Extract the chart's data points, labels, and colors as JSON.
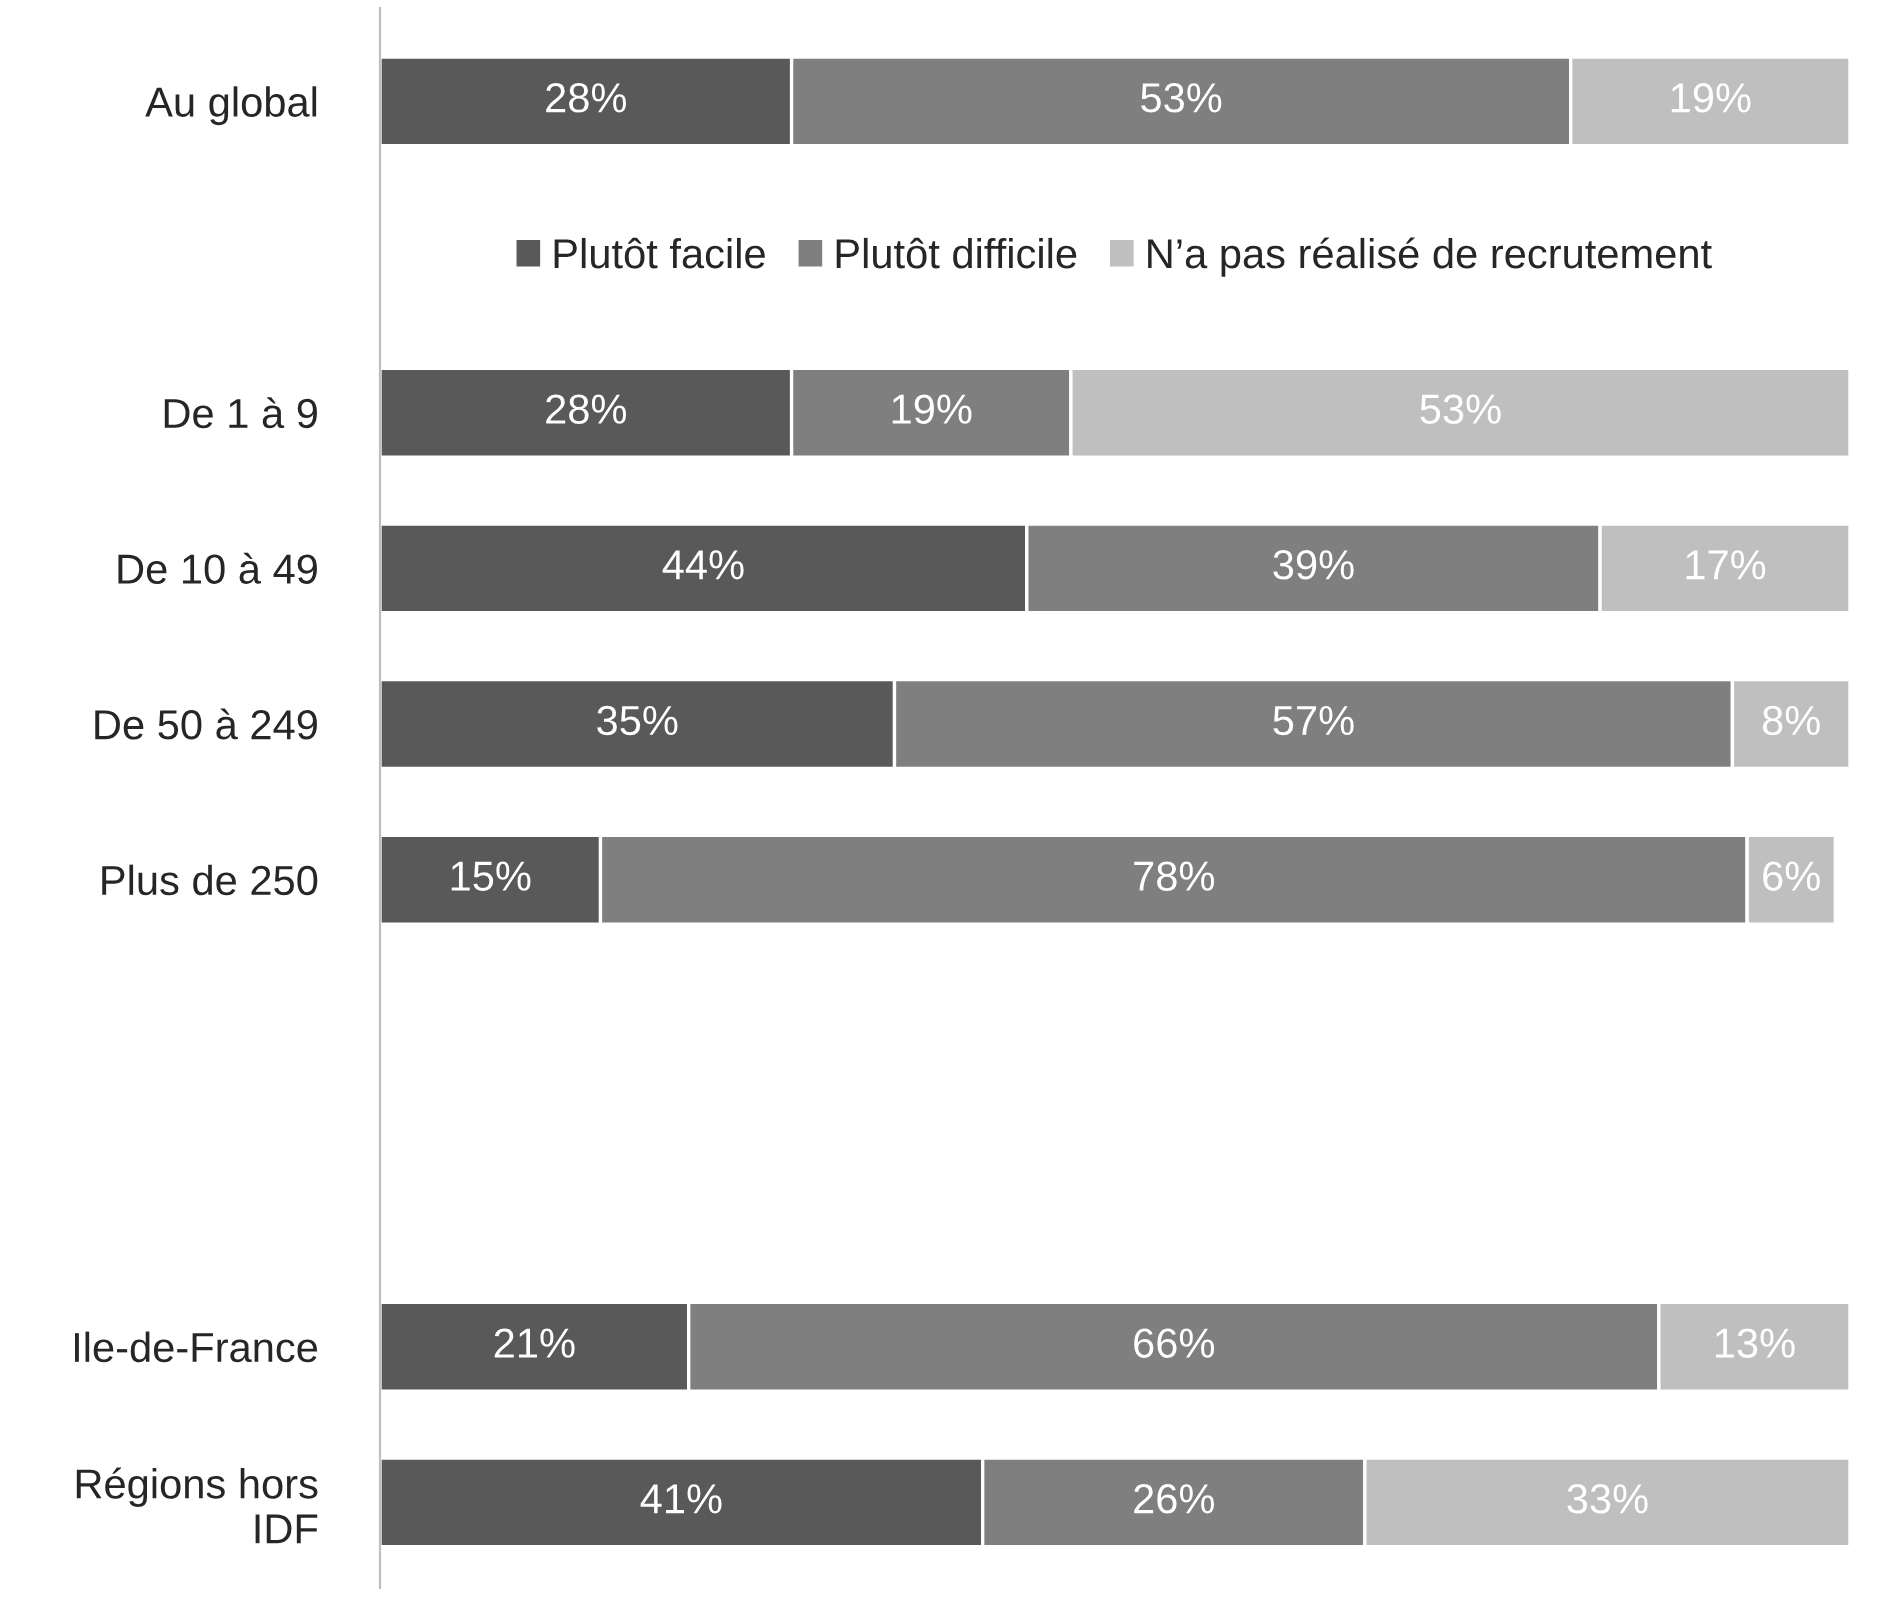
{
  "chart_data": {
    "type": "bar",
    "orientation": "horizontal",
    "stacked": true,
    "categories": [
      "Au global",
      null,
      "De 1 à 9",
      "De 10 à 49",
      "De 50 à 249",
      "Plus de 250",
      null,
      null,
      "Ile-de-France",
      "Régions hors\nIDF"
    ],
    "series": [
      {
        "name": "Plutôt facile",
        "color": "#595959",
        "values": [
          28,
          null,
          28,
          44,
          35,
          15,
          null,
          null,
          21,
          41
        ],
        "value_labels": [
          "28%",
          null,
          "28%",
          "44%",
          "35%",
          "15%",
          null,
          null,
          "21%",
          "41%"
        ]
      },
      {
        "name": "Plutôt difficile",
        "color": "#7f7f7f",
        "values": [
          53,
          null,
          19,
          39,
          57,
          78,
          null,
          null,
          66,
          26
        ],
        "value_labels": [
          "53%",
          null,
          "19%",
          "39%",
          "57%",
          "78%",
          null,
          null,
          "66%",
          "26%"
        ]
      },
      {
        "name": "N’a pas réalisé de recrutement",
        "color": "#bfbfbf",
        "values": [
          19,
          null,
          53,
          17,
          8,
          6,
          null,
          null,
          13,
          33
        ],
        "value_labels": [
          "19%",
          null,
          "53%",
          "17%",
          "8%",
          "6%",
          null,
          null,
          "13%",
          "33%"
        ]
      }
    ],
    "xlim": [
      0,
      100
    ],
    "tick_labels": "y",
    "legend": "top",
    "grid": false
  }
}
